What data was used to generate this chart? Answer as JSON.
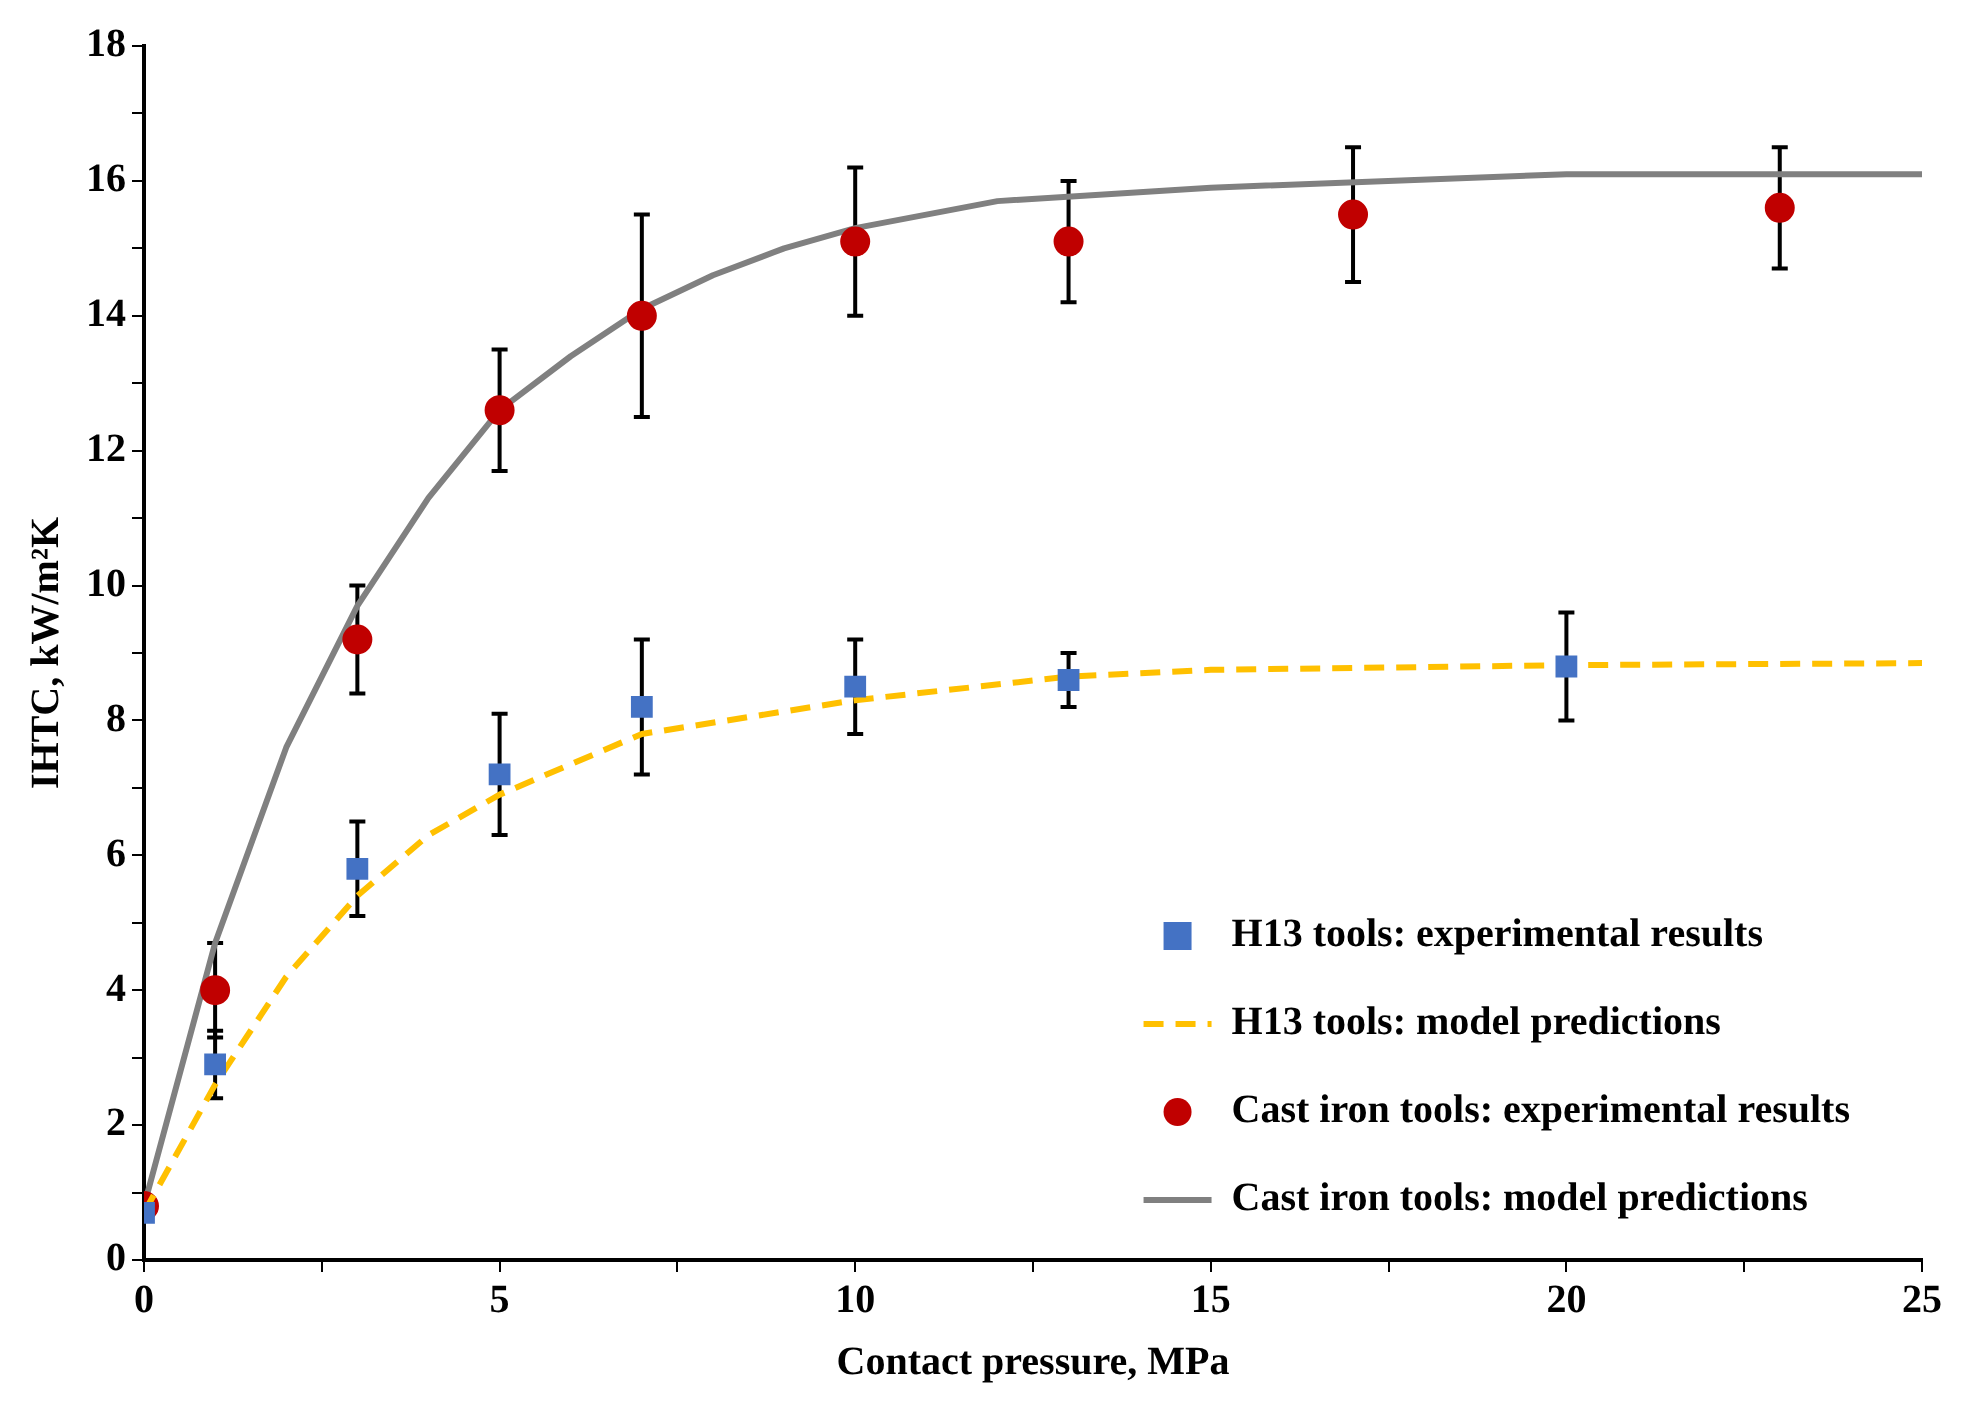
{
  "chart_data": {
    "type": "scatter",
    "xlabel": "Contact pressure, MPa",
    "ylabel": "IHTC, kW/m²K",
    "xlim": [
      0,
      25
    ],
    "ylim": [
      0,
      18
    ],
    "xticks": [
      0,
      {
        "value": 2.5,
        "label": null
      },
      5,
      {
        "value": 7.5,
        "label": null
      },
      10,
      {
        "value": 12.5,
        "label": null
      },
      15,
      {
        "value": 17.5,
        "label": null
      },
      20,
      {
        "value": 22.5,
        "label": null
      },
      25
    ],
    "yticks": [
      0,
      {
        "value": 1,
        "label": null
      },
      2,
      {
        "value": 3,
        "label": null
      },
      4,
      {
        "value": 5,
        "label": null
      },
      6,
      {
        "value": 7,
        "label": null
      },
      8,
      {
        "value": 9,
        "label": null
      },
      10,
      {
        "value": 11,
        "label": null
      },
      12,
      {
        "value": 13,
        "label": null
      },
      14,
      {
        "value": 15,
        "label": null
      },
      16,
      {
        "value": 17,
        "label": null
      },
      18
    ],
    "grid": false,
    "legend": "bottom right",
    "series": [
      {
        "name": "H13 tools: experimental results",
        "marker": "square",
        "color": "#4472c4",
        "x": [
          0,
          1,
          3,
          5,
          7,
          10,
          13,
          20
        ],
        "values": [
          0.7,
          2.9,
          5.8,
          7.2,
          8.2,
          8.5,
          8.6,
          8.8
        ],
        "errors": [
          null,
          [
            2.4,
            3.4
          ],
          [
            5.1,
            6.5
          ],
          [
            6.3,
            8.1
          ],
          [
            7.2,
            9.2
          ],
          [
            7.8,
            9.2
          ],
          [
            8.2,
            9.0
          ],
          [
            8.0,
            9.6
          ]
        ]
      },
      {
        "name": "H13 tools: model predictions",
        "type": "line",
        "marker": "none",
        "line_style": "dashed",
        "color": "#ffc000",
        "x": [
          0,
          1,
          2,
          3,
          4,
          5,
          7,
          10,
          13,
          15,
          20,
          25
        ],
        "values": [
          0.7,
          2.6,
          4.2,
          5.4,
          6.3,
          6.9,
          7.8,
          8.3,
          8.65,
          8.75,
          8.82,
          8.85
        ]
      },
      {
        "name": "Cast iron tools: experimental results",
        "marker": "circle",
        "color": "#c00000",
        "x": [
          0,
          1,
          3,
          5,
          7,
          10,
          13,
          17,
          23
        ],
        "values": [
          0.8,
          4.0,
          9.2,
          12.6,
          14.0,
          15.1,
          15.1,
          15.5,
          15.6
        ],
        "errors": [
          null,
          [
            3.3,
            4.7
          ],
          [
            8.4,
            10.0
          ],
          [
            11.7,
            13.5
          ],
          [
            12.5,
            15.5
          ],
          [
            14.0,
            16.2
          ],
          [
            14.2,
            16.0
          ],
          [
            14.5,
            16.5
          ],
          [
            14.7,
            16.5
          ]
        ]
      },
      {
        "name": "Cast iron tools: model predictions",
        "type": "line",
        "marker": "none",
        "line_style": "solid",
        "color": "#808080",
        "x": [
          0,
          1,
          2,
          3,
          4,
          5,
          6,
          7,
          8,
          9,
          10,
          12,
          15,
          20,
          25
        ],
        "values": [
          0.8,
          4.7,
          7.6,
          9.7,
          11.3,
          12.6,
          13.4,
          14.1,
          14.6,
          15.0,
          15.3,
          15.7,
          15.9,
          16.1,
          16.1
        ]
      }
    ]
  }
}
